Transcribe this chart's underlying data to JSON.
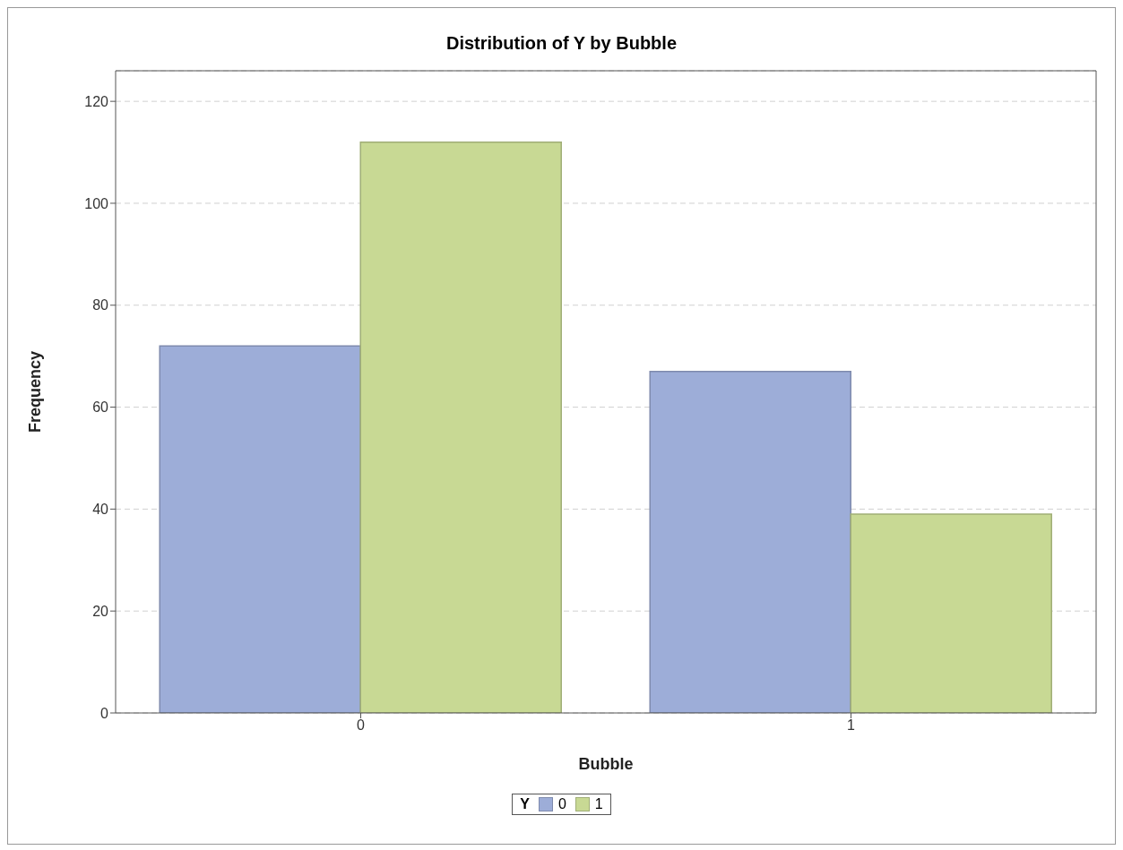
{
  "chart_data": {
    "type": "bar",
    "title": "Distribution of Y by Bubble",
    "xlabel": "Bubble",
    "ylabel": "Frequency",
    "legend_title": "Y",
    "categories": [
      "0",
      "1"
    ],
    "series": [
      {
        "name": "0",
        "color": "#9dadd8",
        "values": [
          72,
          67
        ]
      },
      {
        "name": "1",
        "color": "#c8d994",
        "values": [
          112,
          39
        ]
      }
    ],
    "ylim": [
      0,
      126
    ],
    "yticks": [
      0,
      20,
      40,
      60,
      80,
      100,
      120
    ],
    "grid": "y",
    "legend": "bottom"
  }
}
